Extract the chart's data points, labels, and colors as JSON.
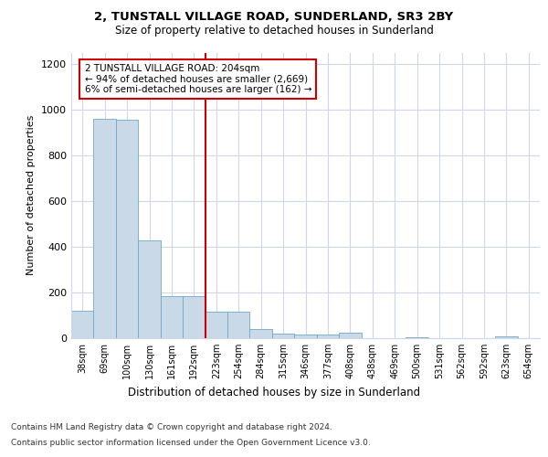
{
  "title1": "2, TUNSTALL VILLAGE ROAD, SUNDERLAND, SR3 2BY",
  "title2": "Size of property relative to detached houses in Sunderland",
  "xlabel": "Distribution of detached houses by size in Sunderland",
  "ylabel": "Number of detached properties",
  "categories": [
    "38sqm",
    "69sqm",
    "100sqm",
    "130sqm",
    "161sqm",
    "192sqm",
    "223sqm",
    "254sqm",
    "284sqm",
    "315sqm",
    "346sqm",
    "377sqm",
    "408sqm",
    "438sqm",
    "469sqm",
    "500sqm",
    "531sqm",
    "562sqm",
    "592sqm",
    "623sqm",
    "654sqm"
  ],
  "values": [
    120,
    960,
    955,
    430,
    185,
    185,
    115,
    115,
    40,
    20,
    15,
    15,
    25,
    0,
    0,
    5,
    0,
    0,
    0,
    10,
    0
  ],
  "bar_color": "#c9d9e8",
  "bar_edge_color": "#6fa8c9",
  "bar_width": 1.0,
  "property_line_x": 5.5,
  "annotation_text": "2 TUNSTALL VILLAGE ROAD: 204sqm\n← 94% of detached houses are smaller (2,669)\n6% of semi-detached houses are larger (162) →",
  "annotation_box_color": "#ffffff",
  "annotation_box_edge_color": "#cc0000",
  "vline_color": "#cc0000",
  "ylim": [
    0,
    1250
  ],
  "yticks": [
    0,
    200,
    400,
    600,
    800,
    1000,
    1200
  ],
  "footer1": "Contains HM Land Registry data © Crown copyright and database right 2024.",
  "footer2": "Contains public sector information licensed under the Open Government Licence v3.0.",
  "bg_color": "#ffffff",
  "grid_color": "#d0d8e8"
}
